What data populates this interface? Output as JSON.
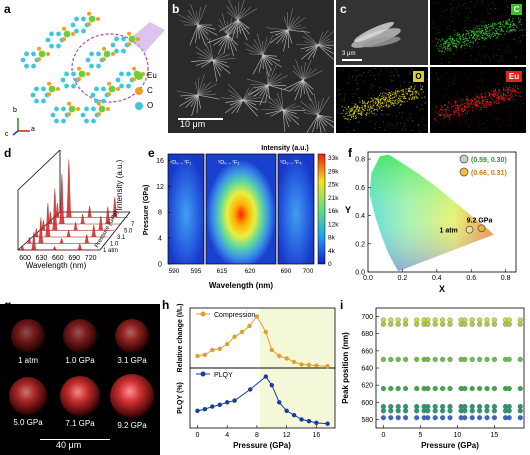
{
  "panels": {
    "a": {
      "letter": "a",
      "legend": [
        "Eu",
        "C",
        "O"
      ],
      "axes": [
        "b",
        "c",
        "a"
      ]
    },
    "b": {
      "letter": "b",
      "scalebar": "10 μm"
    },
    "c": {
      "letter": "c",
      "scalebar": "3 μm",
      "maps": [
        "C",
        "O",
        "Eu"
      ]
    },
    "d": {
      "letter": "d",
      "xlabel": "Wavelength (nm)",
      "ylabel": "Intensity (a.u.)",
      "zlabel": "Pressure (GPa)",
      "xticks": [
        "600",
        "630",
        "660",
        "690",
        "720"
      ],
      "pressures": [
        "9.2",
        "7.1",
        "5.0",
        "3.1",
        "1.0",
        "1 atm"
      ]
    },
    "e": {
      "letter": "e",
      "title": "Intensity (a.u.)",
      "xlabel": "Wavelength (nm)",
      "ylabel": "Pressure (GPa)",
      "transitions": [
        "⁵D₀→⁷F₁",
        "⁵D₀→⁷F₂",
        "⁵D₀→⁷F₄"
      ],
      "xticks": [
        "590",
        "595",
        "615",
        "620",
        "690",
        "700"
      ],
      "yticks": [
        "0",
        "4",
        "8",
        "12",
        "16"
      ],
      "cbar": [
        "33k",
        "29k",
        "25k",
        "21k",
        "16k",
        "12k",
        "8k",
        "4k",
        "0"
      ]
    },
    "f": {
      "letter": "f",
      "xlabel": "X",
      "ylabel": "Y",
      "xticks": [
        "0.0",
        "0.2",
        "0.4",
        "0.6",
        "0.8"
      ],
      "yticks": [
        "0.0",
        "0.2",
        "0.4",
        "0.6",
        "0.8"
      ],
      "legend": [
        "(0.59, 0.30)",
        "(0.66, 0.31)"
      ],
      "labels": [
        "9.2 GPa",
        "1 atm"
      ]
    },
    "g": {
      "letter": "g",
      "labels": [
        "1 atm",
        "1.0 GPa",
        "3.1 GPa",
        "5.0 GPa",
        "7.1 GPa",
        "9.2 GPa"
      ],
      "scalebar": "40 μm"
    },
    "h": {
      "letter": "h",
      "xlabel": "Pressure (GPa)",
      "ylabel_top": "Relative change (I/I₀)",
      "ylabel_bottom": "PLQY (%)",
      "legend_top": "Compression",
      "legend_bottom": "PLQY",
      "xticks": [
        "0",
        "4",
        "8",
        "12",
        "16"
      ]
    },
    "i": {
      "letter": "i",
      "xlabel": "Pressure (GPa)",
      "ylabel": "Peak position (nm)",
      "xticks": [
        "0",
        "5",
        "10",
        "15"
      ],
      "yticks": [
        "580",
        "600",
        "620",
        "640",
        "660",
        "680",
        "700"
      ]
    }
  },
  "chart_data": [
    {
      "type": "line",
      "panel": "h-top",
      "series": [
        {
          "name": "Compression",
          "x": [
            0,
            1,
            2,
            3,
            4,
            5,
            6,
            7,
            8,
            9.2,
            10,
            11,
            12,
            13,
            14,
            15,
            16,
            17.5
          ],
          "values": [
            1.0,
            1.1,
            1.5,
            1.6,
            2.0,
            2.6,
            3.0,
            3.5,
            4.3,
            3.0,
            1.5,
            1.0,
            0.8,
            0.5,
            0.3,
            0.25,
            0.2,
            0.15
          ]
        }
      ],
      "ylim": [
        0,
        5
      ],
      "xlim": [
        -1,
        18.5
      ]
    },
    {
      "type": "line",
      "panel": "h-bottom",
      "series": [
        {
          "name": "PLQY",
          "x": [
            0,
            1,
            2,
            3,
            4,
            5,
            7.1,
            9.2,
            10,
            11,
            12,
            13,
            14,
            15,
            16,
            17.5
          ],
          "values": [
            20,
            22,
            25,
            27,
            30,
            32,
            45,
            60,
            50,
            30,
            20,
            15,
            10,
            8,
            6,
            5
          ]
        }
      ],
      "ylim": [
        0,
        70
      ],
      "xlim": [
        -1,
        18.5
      ]
    },
    {
      "type": "scatter",
      "panel": "i",
      "x": [
        0,
        1,
        2,
        3,
        4.5,
        5.5,
        6,
        7,
        8,
        9,
        10.5,
        11,
        12,
        13,
        14,
        15,
        16.5,
        17,
        18.5
      ],
      "series": [
        {
          "values": [
            696,
            696,
            696,
            696,
            696,
            696,
            696,
            696,
            696,
            696,
            696,
            696,
            696,
            696,
            696,
            696,
            696,
            696,
            696
          ],
          "color": "#c9d94a"
        },
        {
          "values": [
            691,
            691,
            691,
            691,
            691,
            691,
            691,
            691,
            691,
            691,
            691,
            691,
            691,
            691,
            691,
            691,
            691,
            691,
            691
          ],
          "color": "#a8cc48"
        },
        {
          "values": [
            650,
            650,
            650,
            650,
            650,
            650,
            650,
            650,
            650,
            650,
            650,
            650,
            650,
            650,
            650,
            650,
            650,
            650,
            650
          ],
          "color": "#6cc04a"
        },
        {
          "values": [
            616,
            616,
            616,
            616,
            616,
            616,
            616,
            616,
            616,
            616,
            616,
            616,
            616,
            616,
            616,
            616,
            616,
            616,
            616
          ],
          "color": "#3caa4a"
        },
        {
          "values": [
            595,
            595,
            595,
            595,
            595,
            595,
            595,
            595,
            595,
            595,
            595,
            595,
            595,
            595,
            595,
            595,
            595,
            595,
            595
          ],
          "color": "#2a9a60"
        },
        {
          "values": [
            590,
            590,
            590,
            590,
            590,
            590,
            590,
            590,
            590,
            590,
            590,
            590,
            590,
            590,
            590,
            590,
            590,
            590,
            590
          ],
          "color": "#239a78"
        },
        {
          "values": [
            582,
            582,
            582,
            582,
            582,
            582,
            582,
            582,
            582,
            582,
            582,
            582,
            582,
            582,
            582,
            582,
            582,
            582,
            582
          ],
          "color": "#3b64c8"
        }
      ],
      "ylim": [
        570,
        710
      ],
      "xlim": [
        -1,
        19
      ]
    }
  ]
}
